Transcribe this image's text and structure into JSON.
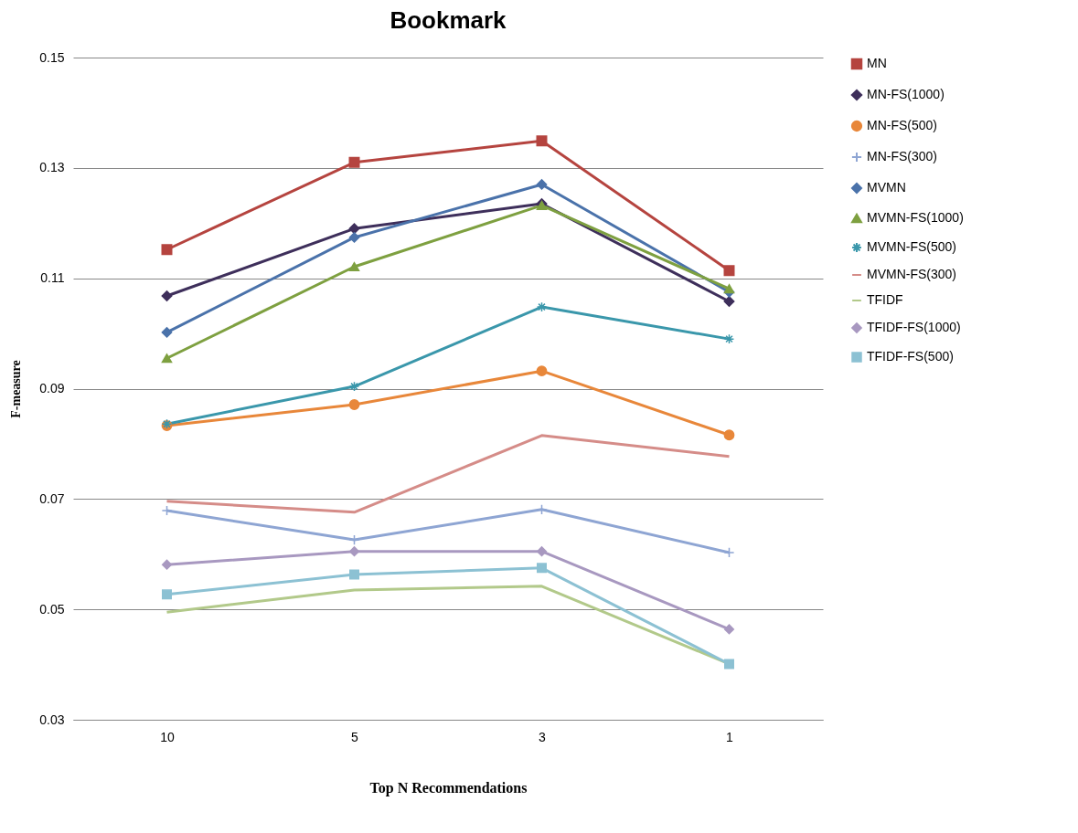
{
  "chart_data": {
    "type": "line",
    "title": "Bookmark",
    "xlabel": "Top N Recommendations",
    "ylabel": "F-measure",
    "categories": [
      "10",
      "5",
      "3",
      "1"
    ],
    "ylim": [
      0.03,
      0.15
    ],
    "yticks": [
      0.03,
      0.05,
      0.07,
      0.09,
      0.11,
      0.13,
      0.15
    ],
    "grid": "y",
    "legend": "right",
    "series": [
      {
        "name": "MN",
        "color": "#b5443f",
        "marker": "square",
        "values": [
          0.1152,
          0.131,
          0.1349,
          0.1114
        ]
      },
      {
        "name": "MN-FS(1000)",
        "color": "#3e2f5b",
        "marker": "diamond",
        "values": [
          0.1068,
          0.119,
          0.1235,
          0.1058
        ]
      },
      {
        "name": "MN-FS(500)",
        "color": "#e8873a",
        "marker": "circle",
        "values": [
          0.0833,
          0.0871,
          0.0932,
          0.0816
        ]
      },
      {
        "name": "MN-FS(300)",
        "color": "#8ea5d3",
        "marker": "cross",
        "values": [
          0.0679,
          0.0626,
          0.0681,
          0.0603
        ]
      },
      {
        "name": "MVMN",
        "color": "#4a72aa",
        "marker": "diamond",
        "values": [
          0.1002,
          0.1174,
          0.127,
          0.1075
        ]
      },
      {
        "name": "MVMN-FS(1000)",
        "color": "#7ea040",
        "marker": "triangle",
        "values": [
          0.0955,
          0.1121,
          0.1232,
          0.1081
        ]
      },
      {
        "name": "MVMN-FS(500)",
        "color": "#3a97ab",
        "marker": "cross",
        "values": [
          0.0836,
          0.0904,
          0.1048,
          0.099
        ]
      },
      {
        "name": "MVMN-FS(300)",
        "color": "#d58c88",
        "marker": "none",
        "values": [
          0.0696,
          0.0676,
          0.0815,
          0.0777
        ]
      },
      {
        "name": "TFIDF",
        "color": "#b2c98a",
        "marker": "none",
        "values": [
          0.0495,
          0.0535,
          0.0542,
          0.0401
        ]
      },
      {
        "name": "TFIDF-FS(1000)",
        "color": "#a898c0",
        "marker": "diamond",
        "values": [
          0.0581,
          0.0605,
          0.0605,
          0.0464
        ]
      },
      {
        "name": "TFIDF-FS(500)",
        "color": "#8cc1d3",
        "marker": "square",
        "values": [
          0.0527,
          0.0563,
          0.0575,
          0.0401
        ]
      }
    ]
  }
}
